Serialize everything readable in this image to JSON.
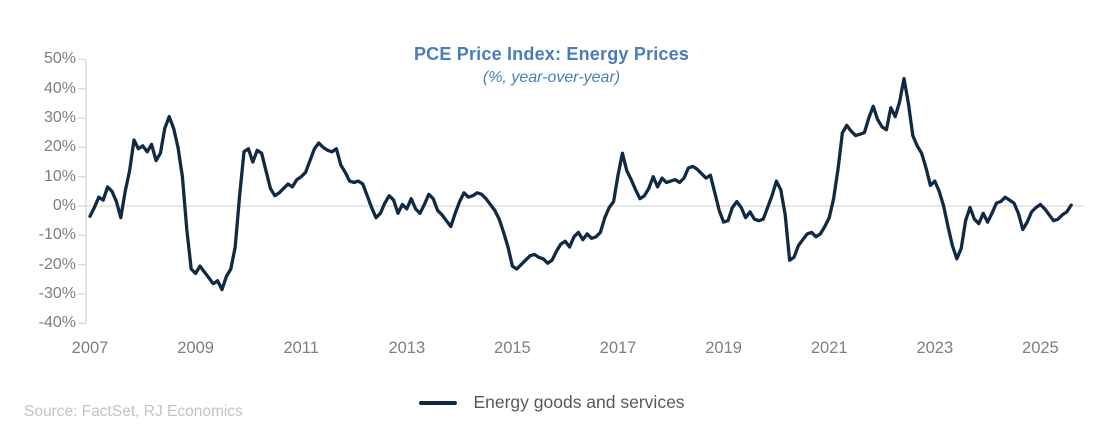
{
  "title": "PCE Price Index: Energy Prices",
  "subtitle": "(%, year-over-year)",
  "source": "Source: FactSet, RJ Economics",
  "legend": {
    "label": "Energy goods and services"
  },
  "colors": {
    "line": "#112a44",
    "title_text": "#4a7eba",
    "axis_text": "#7f7f7f",
    "legend_text": "#595959",
    "source_text": "#c3c3c3",
    "grid": "#d9d9d9"
  },
  "chart_data": {
    "type": "line",
    "title": "PCE Price Index: Energy Prices",
    "subtitle": "(%, year-over-year)",
    "xlabel": "",
    "ylabel": "",
    "ylim": [
      -40,
      50
    ],
    "y_ticks": [
      50,
      40,
      30,
      20,
      10,
      0,
      -10,
      -20,
      -30,
      -40
    ],
    "y_tick_suffix": "%",
    "x_tick_years": [
      2007,
      2009,
      2011,
      2013,
      2015,
      2017,
      2019,
      2021,
      2023,
      2025
    ],
    "grid": "horizontal zero-line only",
    "legend_position": "bottom-center",
    "frequency": "monthly",
    "x_start": {
      "year": 2007,
      "month": 1
    },
    "x_end": {
      "year": 2025,
      "month": 8
    },
    "series": [
      {
        "name": "Energy goods and services",
        "unit": "percent year-over-year",
        "values": [
          -3.5,
          -0.5,
          3.0,
          2.0,
          6.5,
          5.0,
          1.5,
          -4.0,
          5.0,
          12.0,
          22.5,
          19.5,
          20.5,
          18.5,
          21.0,
          15.5,
          18.0,
          26.5,
          30.5,
          26.5,
          20.0,
          10.0,
          -8.0,
          -21.5,
          -23.0,
          -20.5,
          -22.5,
          -24.5,
          -26.5,
          -25.5,
          -28.5,
          -24.0,
          -21.5,
          -14.0,
          3.5,
          18.5,
          19.5,
          15.0,
          19.0,
          18.0,
          12.0,
          6.0,
          3.5,
          4.5,
          6.0,
          7.5,
          6.5,
          9.0,
          10.0,
          11.5,
          15.5,
          19.5,
          21.5,
          20.0,
          19.0,
          18.5,
          19.5,
          14.0,
          11.5,
          8.5,
          8.0,
          8.5,
          7.5,
          3.5,
          -0.5,
          -4.0,
          -2.5,
          1.0,
          3.5,
          2.0,
          -2.5,
          0.5,
          -1.0,
          2.5,
          -1.0,
          -2.5,
          0.5,
          4.0,
          2.5,
          -1.5,
          -3.0,
          -5.0,
          -7.0,
          -2.5,
          1.5,
          4.5,
          3.0,
          3.5,
          4.5,
          4.0,
          2.5,
          0.5,
          -1.5,
          -4.5,
          -9.0,
          -14.0,
          -20.5,
          -21.5,
          -20.0,
          -18.5,
          -17.0,
          -16.5,
          -17.5,
          -18.0,
          -19.5,
          -18.5,
          -15.5,
          -13.0,
          -12.0,
          -14.0,
          -10.5,
          -9.0,
          -11.5,
          -9.5,
          -11.0,
          -10.5,
          -9.0,
          -4.0,
          -0.5,
          1.5,
          10.5,
          18.0,
          12.0,
          9.0,
          5.5,
          2.5,
          3.5,
          6.0,
          10.0,
          6.5,
          9.5,
          8.0,
          8.5,
          9.0,
          8.0,
          9.5,
          13.0,
          13.5,
          12.5,
          11.0,
          9.5,
          10.5,
          4.5,
          -1.5,
          -5.5,
          -5.0,
          -0.5,
          1.5,
          -0.5,
          -4.0,
          -2.0,
          -4.5,
          -5.0,
          -4.5,
          -0.5,
          3.5,
          8.5,
          5.5,
          -3.0,
          -18.5,
          -17.5,
          -13.5,
          -11.5,
          -9.5,
          -9.0,
          -10.5,
          -9.5,
          -7.0,
          -4.0,
          2.5,
          12.5,
          25.0,
          27.5,
          25.5,
          24.0,
          24.5,
          25.0,
          30.0,
          34.0,
          29.5,
          27.0,
          26.0,
          33.5,
          30.5,
          35.5,
          43.5,
          35.0,
          24.0,
          20.5,
          18.0,
          13.0,
          7.0,
          8.5,
          5.0,
          0.0,
          -7.0,
          -13.5,
          -18.0,
          -14.5,
          -5.0,
          -0.5,
          -4.5,
          -6.0,
          -2.5,
          -5.5,
          -2.5,
          1.0,
          1.5,
          3.0,
          2.0,
          1.0,
          -2.5,
          -8.0,
          -5.5,
          -2.0,
          -0.5,
          0.5,
          -1.0,
          -3.0,
          -5.0,
          -4.5,
          -3.0,
          -2.0,
          0.3
        ]
      }
    ]
  }
}
